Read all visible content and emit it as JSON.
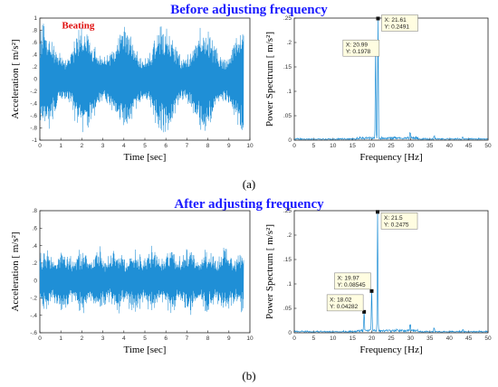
{
  "titles": {
    "top": "Before adjusting frequency",
    "bottom": "After adjusting frequency"
  },
  "panel_labels": {
    "a": "(a)",
    "b": "(b)"
  },
  "annotation_beating": "Beating",
  "colors": {
    "title": "#1a1aff",
    "signal": "#1f8fd6",
    "annotation": "#e01010"
  },
  "chart_data": [
    {
      "id": "a-time",
      "type": "line",
      "xlabel": "Time [sec]",
      "ylabel": "Acceleration [ m/s²]",
      "xlim": [
        0,
        10
      ],
      "ylim": [
        -1,
        1
      ],
      "xticks": [
        0,
        1,
        2,
        3,
        4,
        5,
        6,
        7,
        8,
        9,
        10
      ],
      "yticks": [
        -1,
        -0.8,
        -0.6,
        -0.4,
        -0.2,
        0,
        0.2,
        0.4,
        0.6,
        0.8,
        1
      ],
      "signal": {
        "kind": "beating",
        "duration_sec": 9.7,
        "envelope_peaks_sec": [
          0.2,
          2.1,
          4.0,
          5.9,
          7.8,
          9.6
        ],
        "envelope_peak_amplitude": 0.85,
        "envelope_min_amplitude": 0.35
      }
    },
    {
      "id": "a-spectrum",
      "type": "line",
      "xlabel": "Frequency [Hz]",
      "ylabel": "Power Spectrum [ m/s²]",
      "xlim": [
        0,
        50
      ],
      "ylim": [
        0,
        0.25
      ],
      "xticks": [
        0,
        5,
        10,
        15,
        20,
        25,
        30,
        35,
        40,
        45,
        50
      ],
      "yticks": [
        0,
        0.05,
        0.1,
        0.15,
        0.2,
        0.25
      ],
      "peaks": [
        {
          "x": 20.99,
          "y": 0.1978
        },
        {
          "x": 21.61,
          "y": 0.2491
        }
      ],
      "datatips": [
        {
          "x": "X: 20.99",
          "y": "Y: 0.1978"
        },
        {
          "x": "X: 21.61",
          "y": "Y: 0.2491"
        }
      ]
    },
    {
      "id": "b-time",
      "type": "line",
      "xlabel": "Time [sec]",
      "ylabel": "Acceleration [ m/s²]",
      "xlim": [
        0,
        10
      ],
      "ylim": [
        -0.6,
        0.8
      ],
      "xticks": [
        0,
        1,
        2,
        3,
        4,
        5,
        6,
        7,
        8,
        9,
        10
      ],
      "yticks": [
        -0.6,
        -0.4,
        -0.2,
        0,
        0.2,
        0.4,
        0.6,
        0.8
      ],
      "signal": {
        "kind": "irregular",
        "duration_sec": 9.7,
        "typical_amplitude": 0.4,
        "max_amplitude": 0.55
      }
    },
    {
      "id": "b-spectrum",
      "type": "line",
      "xlabel": "Frequency [Hz]",
      "ylabel": "Power Spectrum [ m/s²]",
      "xlim": [
        0,
        50
      ],
      "ylim": [
        0,
        0.25
      ],
      "xticks": [
        0,
        5,
        10,
        15,
        20,
        25,
        30,
        35,
        40,
        45,
        50
      ],
      "yticks": [
        0,
        0.05,
        0.1,
        0.15,
        0.2,
        0.25
      ],
      "peaks": [
        {
          "x": 18.02,
          "y": 0.04282
        },
        {
          "x": 19.97,
          "y": 0.08545
        },
        {
          "x": 21.5,
          "y": 0.2475
        }
      ],
      "datatips": [
        {
          "x": "X: 18.02",
          "y": "Y: 0.04282"
        },
        {
          "x": "X: 19.97",
          "y": "Y: 0.08545"
        },
        {
          "x": "X: 21.5",
          "y": "Y: 0.2475"
        }
      ]
    }
  ]
}
